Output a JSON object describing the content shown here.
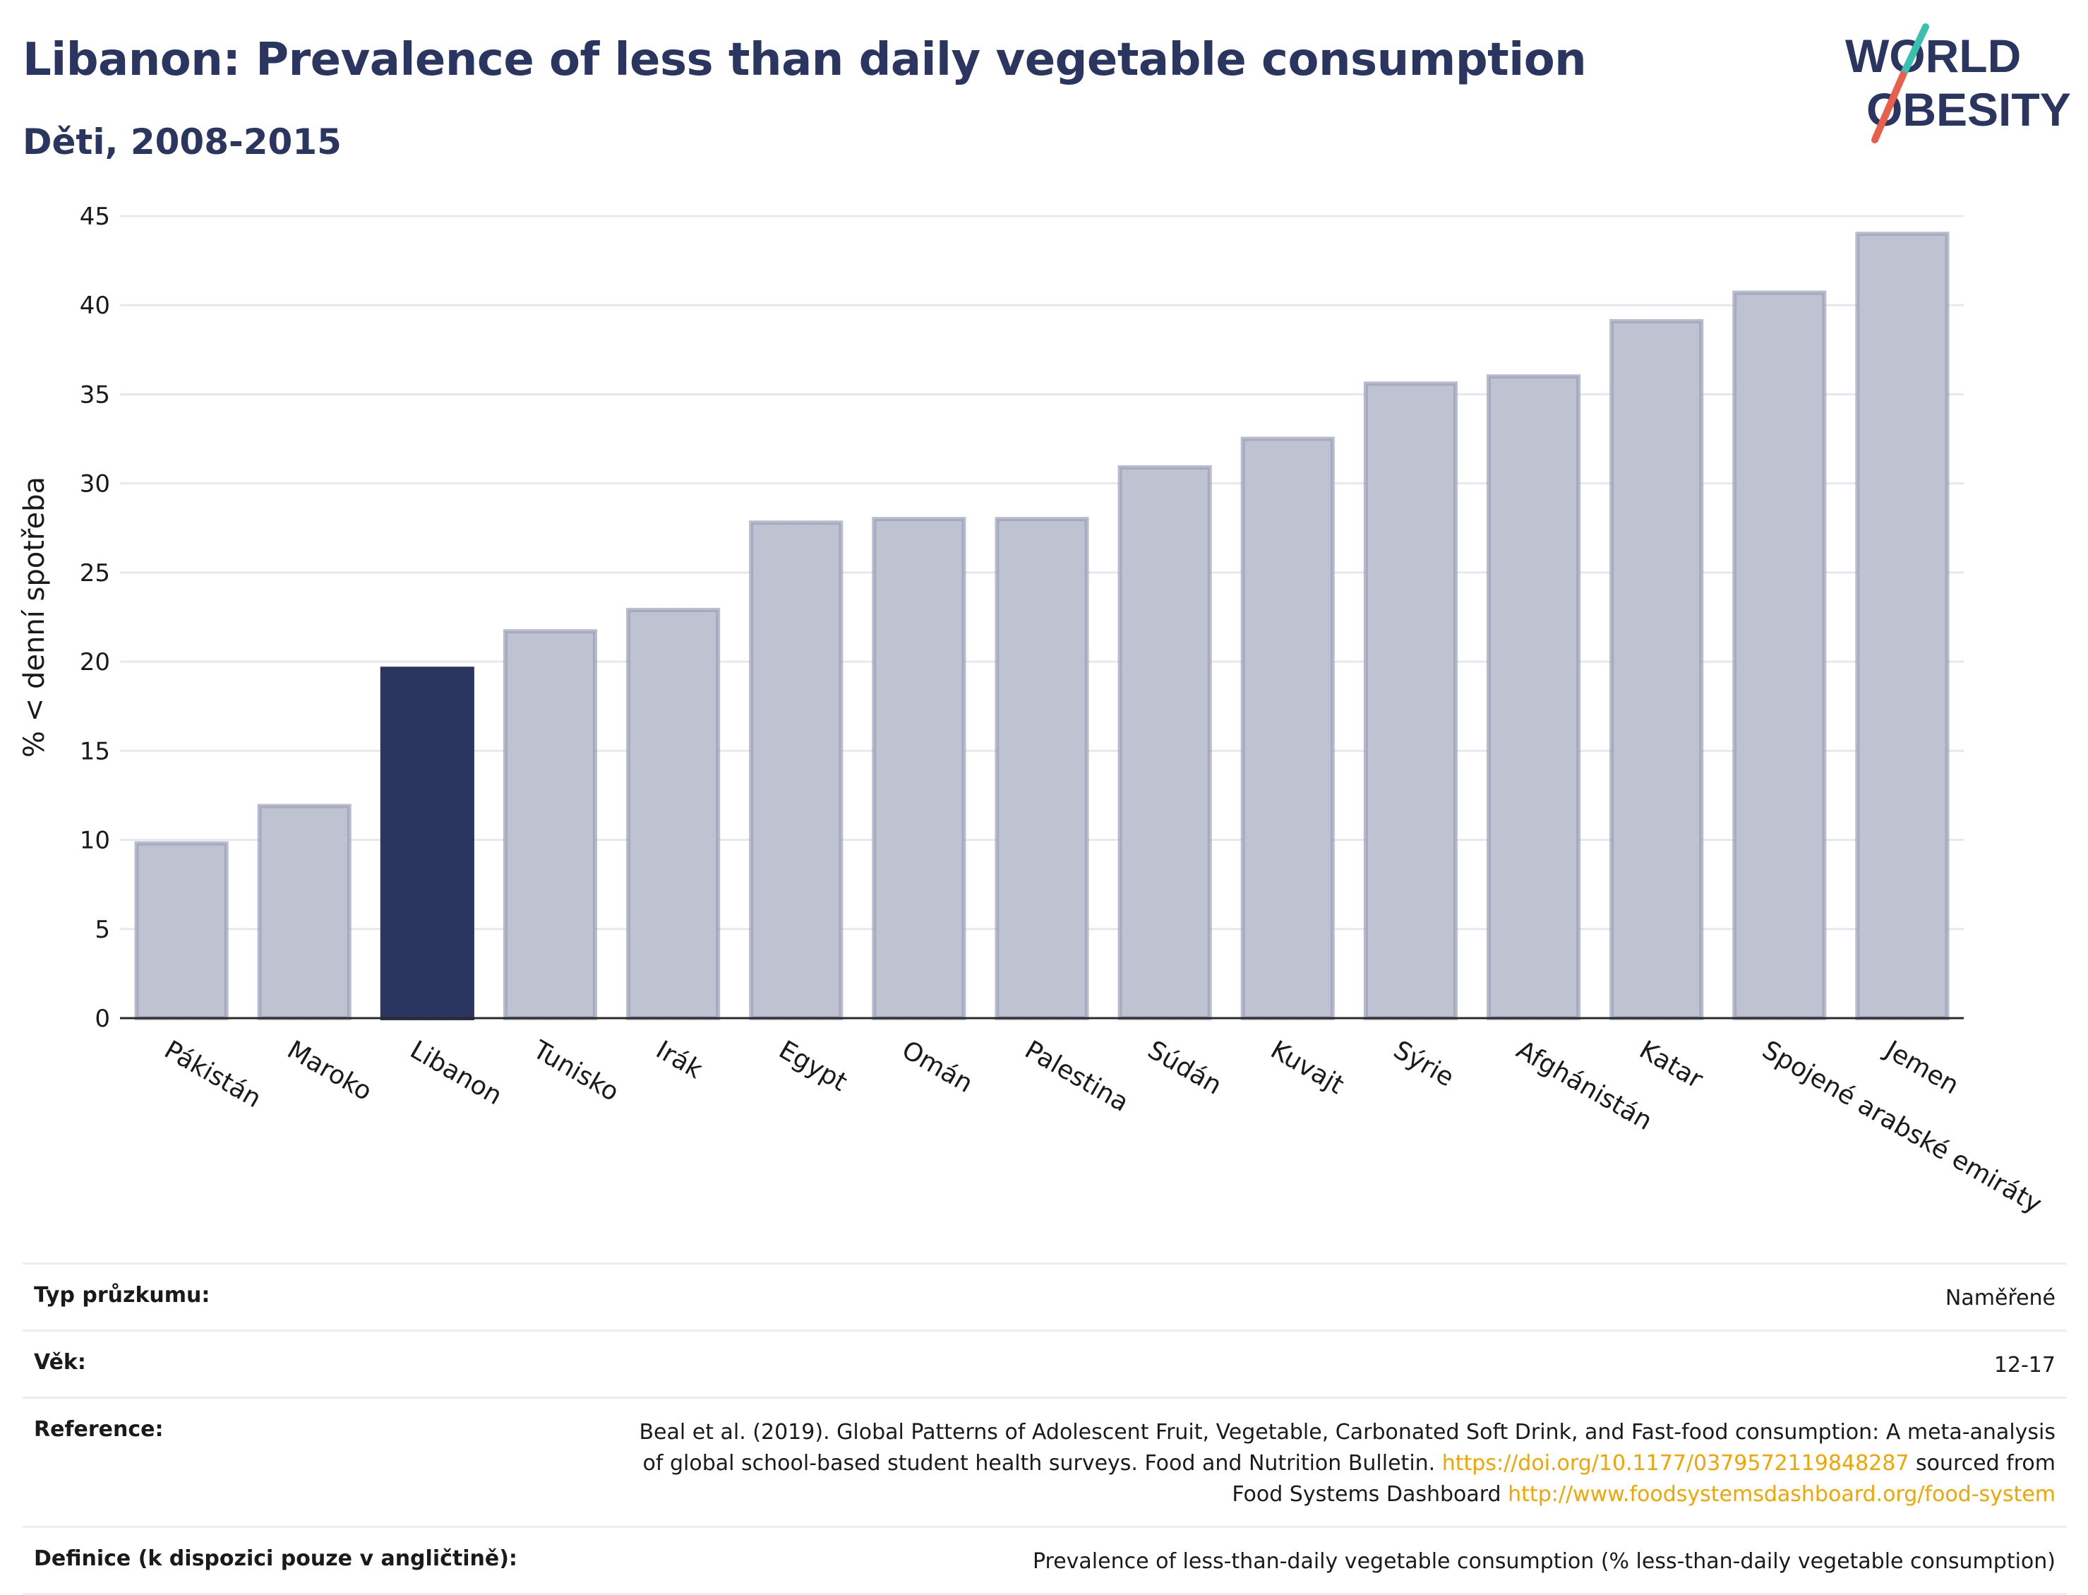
{
  "header": {
    "title": "Libanon: Prevalence of less than daily vegetable consumption",
    "subtitle": "Děti, 2008-2015",
    "logo_line1": "WORLD",
    "logo_line2": "OBESITY"
  },
  "colors": {
    "highlight": "#2b3660",
    "bar": "#bfc3d1",
    "bar_border": "#9aa0b8",
    "title": "#2a3560",
    "link": "#f0a500"
  },
  "chart_data": {
    "type": "bar",
    "title": "Libanon: Prevalence of less than daily vegetable consumption",
    "subtitle": "Děti, 2008-2015",
    "ylabel": "% < denní spotřeba",
    "xlabel": "",
    "ylim": [
      0,
      45
    ],
    "yticks": [
      0,
      5,
      10,
      15,
      20,
      25,
      30,
      35,
      40,
      45
    ],
    "grid": true,
    "highlight": "Libanon",
    "categories": [
      "Pákistán",
      "Maroko",
      "Libanon",
      "Tunisko",
      "Irák",
      "Egypt",
      "Omán",
      "Palestina",
      "Súdán",
      "Kuvajt",
      "Sýrie",
      "Afghánistán",
      "Katar",
      "Spojené arabské emiráty",
      "Jemen"
    ],
    "values": [
      9.8,
      11.9,
      19.6,
      21.7,
      22.9,
      27.8,
      28.0,
      28.0,
      30.9,
      32.5,
      35.6,
      36.0,
      39.1,
      40.7,
      44.0
    ]
  },
  "meta": {
    "survey_type_label": "Typ průzkumu:",
    "survey_type_value": "Naměřené",
    "age_label": "Věk:",
    "age_value": "12-17",
    "reference_label": "Reference:",
    "reference_text_1": "Beal et al. (2019). Global Patterns of Adolescent Fruit, Vegetable, Carbonated Soft Drink, and Fast-food consumption: A meta-analysis",
    "reference_text_2": "of global school-based student health surveys. Food and Nutrition Bulletin.",
    "reference_link_1": "https://doi.org/10.1177/0379572119848287",
    "reference_text_3": "sourced from",
    "reference_text_4": "Food Systems Dashboard",
    "reference_link_2": "http://www.foodsystemsdashboard.org/food-system",
    "definition_label": "Definice (k dispozici pouze v angličtině):",
    "definition_value": "Prevalence of less-than-daily vegetable consumption (% less-than-daily vegetable consumption)"
  }
}
